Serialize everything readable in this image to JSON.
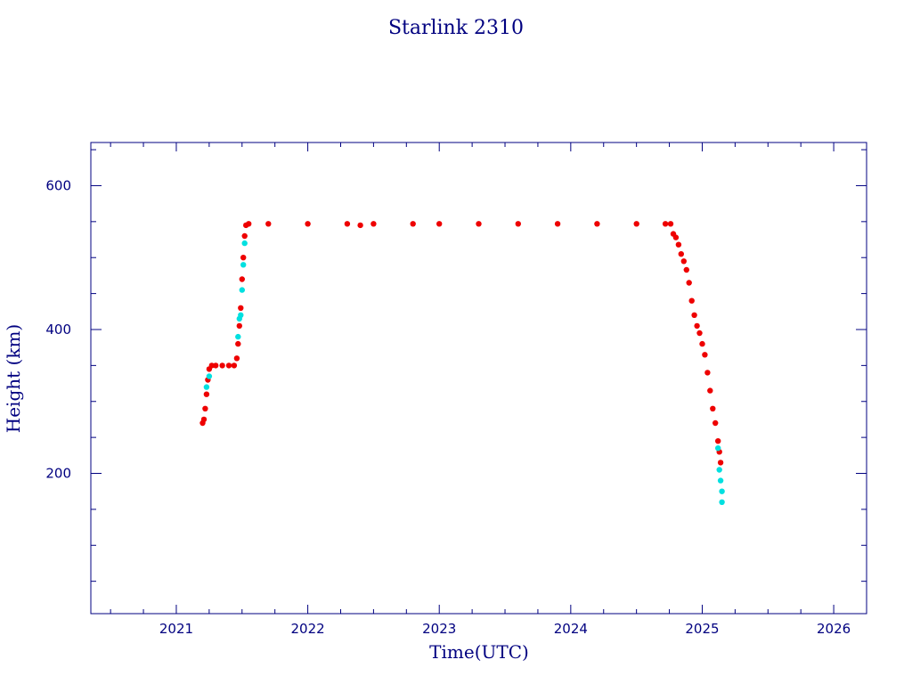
{
  "chart_data": {
    "type": "scatter",
    "title": "Starlink 2310",
    "xlabel": "Time(UTC)",
    "ylabel": "Height (km)",
    "xlim": [
      2020.35,
      2026.25
    ],
    "ylim": [
      5,
      660
    ],
    "x_ticks": [
      {
        "value": 2021,
        "label": "2021"
      },
      {
        "value": 2022,
        "label": "2022"
      },
      {
        "value": 2023,
        "label": "2023"
      },
      {
        "value": 2024,
        "label": "2024"
      },
      {
        "value": 2025,
        "label": "2025"
      },
      {
        "value": 2026,
        "label": "2026"
      }
    ],
    "x_minor_step": 0.25,
    "y_ticks": [
      {
        "value": 200,
        "label": "200"
      },
      {
        "value": 400,
        "label": "400"
      },
      {
        "value": 600,
        "label": "600"
      }
    ],
    "y_minor_step": 50,
    "grid": false,
    "colors": {
      "axis": "#000080",
      "primary_marker": "#ee0000",
      "secondary_marker": "#00e0e0"
    },
    "series": [
      {
        "values": [
          [
            2021.2,
            270
          ],
          [
            2021.21,
            275
          ],
          [
            2021.22,
            290
          ],
          [
            2021.23,
            310
          ],
          [
            2021.24,
            330
          ],
          [
            2021.25,
            345
          ],
          [
            2021.27,
            350
          ],
          [
            2021.3,
            350
          ],
          [
            2021.35,
            350
          ],
          [
            2021.4,
            350
          ],
          [
            2021.44,
            350
          ],
          [
            2021.46,
            360
          ],
          [
            2021.47,
            380
          ],
          [
            2021.48,
            405
          ],
          [
            2021.49,
            430
          ],
          [
            2021.5,
            470
          ],
          [
            2021.51,
            500
          ],
          [
            2021.52,
            530
          ],
          [
            2021.53,
            545
          ],
          [
            2021.55,
            547
          ],
          [
            2021.7,
            547
          ],
          [
            2022.0,
            547
          ],
          [
            2022.3,
            547
          ],
          [
            2022.4,
            545
          ],
          [
            2022.5,
            547
          ],
          [
            2022.8,
            547
          ],
          [
            2023.0,
            547
          ],
          [
            2023.3,
            547
          ],
          [
            2023.6,
            547
          ],
          [
            2023.9,
            547
          ],
          [
            2024.2,
            547
          ],
          [
            2024.5,
            547
          ],
          [
            2024.72,
            547
          ],
          [
            2024.76,
            547
          ],
          [
            2024.78,
            533
          ],
          [
            2024.8,
            528
          ],
          [
            2024.82,
            518
          ],
          [
            2024.84,
            505
          ],
          [
            2024.86,
            495
          ],
          [
            2024.88,
            483
          ],
          [
            2024.9,
            465
          ],
          [
            2024.92,
            440
          ],
          [
            2024.94,
            420
          ],
          [
            2024.96,
            405
          ],
          [
            2024.98,
            395
          ],
          [
            2025.0,
            380
          ],
          [
            2025.02,
            365
          ],
          [
            2025.04,
            340
          ],
          [
            2025.06,
            315
          ],
          [
            2025.08,
            290
          ],
          [
            2025.1,
            270
          ],
          [
            2025.12,
            245
          ],
          [
            2025.13,
            230
          ],
          [
            2025.14,
            215
          ]
        ]
      },
      {
        "values": [
          [
            2021.23,
            320
          ],
          [
            2021.25,
            335
          ],
          [
            2021.47,
            390
          ],
          [
            2021.48,
            415
          ],
          [
            2021.49,
            420
          ],
          [
            2021.5,
            455
          ],
          [
            2021.51,
            490
          ],
          [
            2021.52,
            520
          ],
          [
            2025.12,
            235
          ],
          [
            2025.13,
            205
          ],
          [
            2025.14,
            190
          ],
          [
            2025.15,
            175
          ],
          [
            2025.15,
            160
          ]
        ]
      }
    ]
  }
}
